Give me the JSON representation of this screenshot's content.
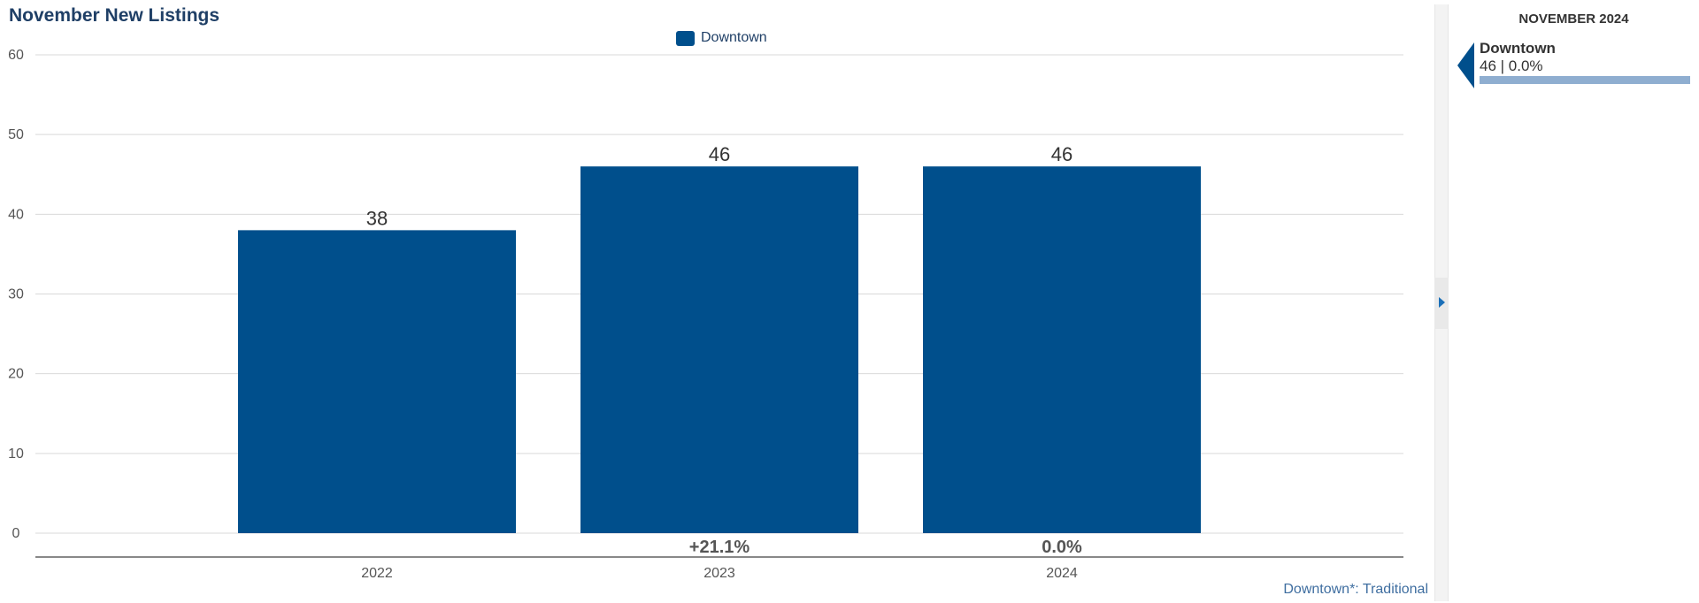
{
  "chart_data": {
    "type": "bar",
    "title": "November New Listings",
    "categories": [
      "2022",
      "2023",
      "2024"
    ],
    "series": [
      {
        "name": "Downtown",
        "values": [
          38,
          46,
          46
        ],
        "color": "#004f8c"
      }
    ],
    "changes": [
      "",
      "+21.1%",
      "0.0%"
    ],
    "ylim": [
      0,
      60
    ],
    "yticks": [
      0,
      10,
      20,
      30,
      40,
      50,
      60
    ],
    "grid": true,
    "legend_position": "top-center",
    "footnote": "Downtown*: Traditional"
  },
  "side_panel": {
    "heading": "NOVEMBER 2024",
    "name": "Downtown",
    "summary": "46 | 0.0%",
    "level": 1.0,
    "color": "#004f8c",
    "bar_color": "#8faed0",
    "icons": [
      "left-triangle-marker",
      "chevron-right"
    ]
  }
}
